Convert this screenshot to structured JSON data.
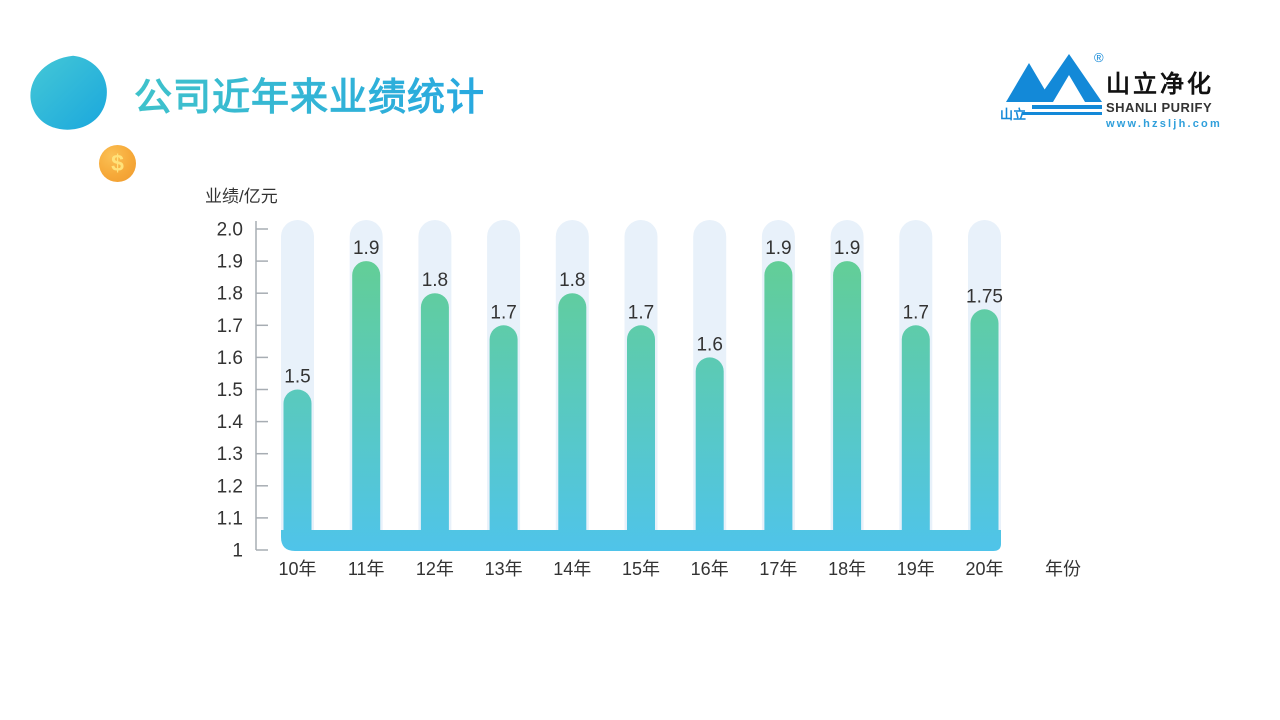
{
  "slide": {
    "background": "#ffffff"
  },
  "header": {
    "title": "公司近年来业绩统计",
    "title_gradient_left": "#3fc2cb",
    "title_gradient_right": "#27a8e0",
    "coin_symbol": "$",
    "coin_color": "#f6a939",
    "blob_color_light": "#45c8d6",
    "blob_color_dark": "#1aa7dd"
  },
  "logo": {
    "mark_text": "山立",
    "registered_symbol": "®",
    "name_cn": "山立净化",
    "name_en": "SHANLI PURIFY",
    "website": "www.hzsljh.com",
    "brand_blue": "#1389d8"
  },
  "chart_data": {
    "type": "bar",
    "title": "",
    "ylabel": "业绩/亿元",
    "xlabel": "年份",
    "categories": [
      "10年",
      "11年",
      "12年",
      "13年",
      "14年",
      "15年",
      "16年",
      "17年",
      "18年",
      "19年",
      "20年"
    ],
    "values": [
      1.5,
      1.9,
      1.8,
      1.7,
      1.8,
      1.7,
      1.6,
      1.9,
      1.9,
      1.7,
      1.75
    ],
    "value_labels": [
      "1.5",
      "1.9",
      "1.8",
      "1.7",
      "1.8",
      "1.7",
      "1.6",
      "1.9",
      "1.9",
      "1.7",
      "1.75"
    ],
    "y_ticks": [
      "2.0",
      "1.9",
      "1.8",
      "1.7",
      "1.6",
      "1.5",
      "1.4",
      "1.3",
      "1.2",
      "1.1",
      "1"
    ],
    "ylim": [
      1,
      2
    ],
    "grid": false,
    "legend": null,
    "bar_gradient_top": "#63ce95",
    "bar_gradient_bottom": "#4fc4ea",
    "track_color": "#e8f1fa",
    "axis_color": "#a7adb3",
    "text_color": "#333333"
  }
}
